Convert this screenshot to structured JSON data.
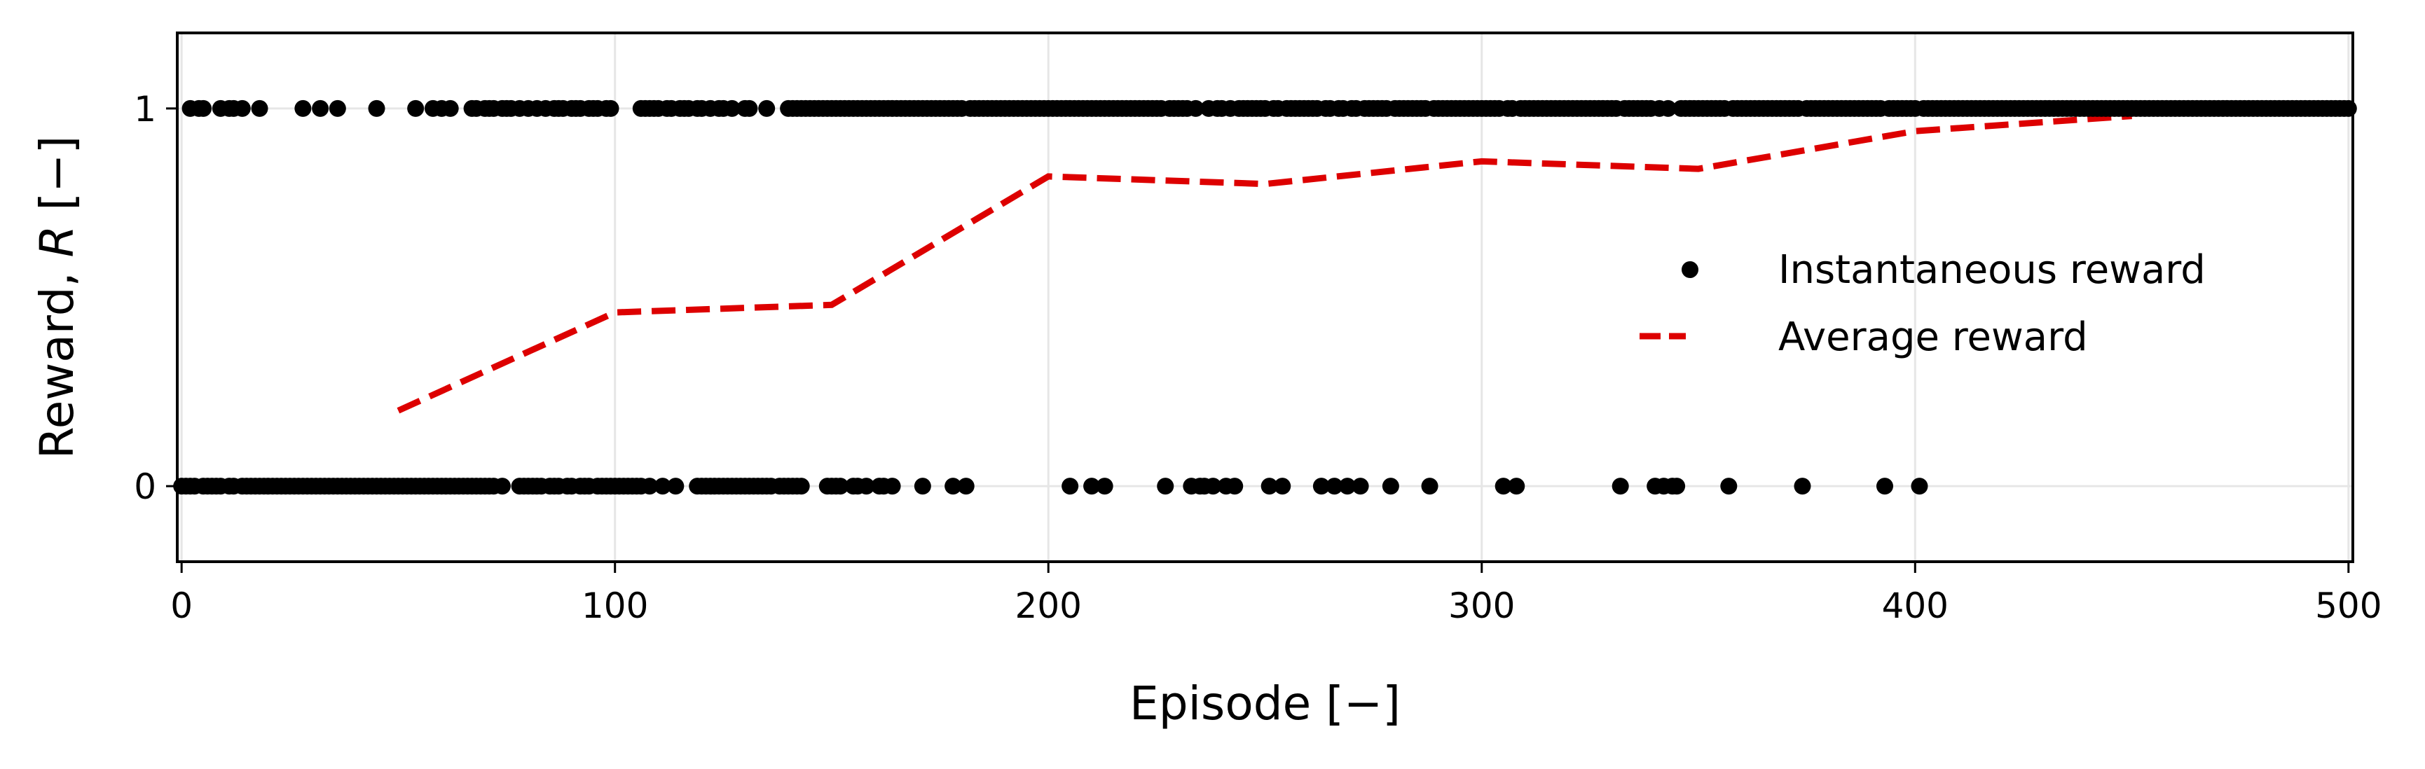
{
  "chart_data": {
    "type": "scatter",
    "xlabel": "Episode [−]",
    "ylabel_prefix": "Reward, ",
    "ylabel_var": "R",
    "ylabel_suffix": " [−]",
    "xlim": [
      -1,
      501
    ],
    "ylim": [
      -0.2,
      1.2
    ],
    "xticks": [
      0,
      100,
      200,
      300,
      400,
      500
    ],
    "xtick_labels": [
      "0",
      "100",
      "200",
      "300",
      "400",
      "500"
    ],
    "yticks": [
      0,
      1
    ],
    "ytick_labels": [
      "0",
      "1"
    ],
    "grid": true,
    "legend_position": "center-right",
    "colors": {
      "instantaneous": "#000000",
      "average": "#dd0000",
      "grid": "#e6e6e6"
    },
    "series": [
      {
        "name": "Instantaneous reward",
        "kind": "scatter",
        "zeros": [
          0,
          1,
          2,
          3,
          5,
          6,
          7,
          8,
          9,
          11,
          12,
          14,
          15,
          16,
          17,
          18,
          19,
          20,
          21,
          22,
          23,
          24,
          25,
          26,
          27,
          28,
          29,
          30,
          31,
          32,
          33,
          34,
          35,
          36,
          37,
          38,
          39,
          40,
          41,
          42,
          43,
          44,
          45,
          46,
          47,
          48,
          49,
          50,
          51,
          52,
          53,
          54,
          55,
          56,
          57,
          58,
          59,
          60,
          61,
          62,
          63,
          64,
          65,
          66,
          67,
          68,
          69,
          70,
          71,
          72,
          74,
          78,
          79,
          80,
          81,
          82,
          83,
          85,
          86,
          87,
          89,
          90,
          92,
          93,
          94,
          96,
          97,
          98,
          99,
          100,
          101,
          102,
          103,
          104,
          105,
          106,
          108,
          111,
          114,
          119,
          120,
          121,
          122,
          123,
          124,
          125,
          126,
          127,
          128,
          129,
          130,
          131,
          132,
          133,
          134,
          135,
          136,
          138,
          139,
          140,
          141,
          142,
          143,
          149,
          150,
          151,
          152,
          155,
          156,
          158,
          161,
          162,
          164,
          171,
          178,
          181,
          205,
          210,
          213,
          227,
          233,
          235,
          236,
          238,
          241,
          243,
          251,
          254,
          263,
          266,
          269,
          272,
          279,
          288,
          305,
          308,
          332,
          340,
          342,
          344,
          345,
          357,
          374,
          393,
          401
        ],
        "ones_sparse": [
          2,
          4,
          5,
          9,
          11,
          12,
          14,
          18,
          28,
          32,
          36,
          45,
          54,
          58,
          60,
          62,
          67,
          68,
          70,
          71,
          72,
          74,
          75,
          76,
          78,
          80,
          82,
          84,
          86,
          87,
          88,
          90,
          91,
          92,
          94,
          95,
          96,
          98,
          99,
          106,
          107,
          108,
          109,
          110,
          112,
          113,
          115,
          116,
          117,
          119,
          120,
          122,
          124,
          125,
          127,
          130,
          131,
          135,
          140,
          141,
          142,
          143,
          144,
          145,
          146,
          147,
          148,
          149,
          150,
          151,
          152,
          153,
          154,
          155,
          156,
          157,
          158,
          159,
          160,
          161,
          162,
          163,
          164,
          165,
          166,
          167,
          168,
          169,
          170,
          171,
          172,
          173,
          174,
          175,
          176,
          177,
          178,
          179,
          180,
          182,
          183,
          184,
          185,
          186,
          187,
          188,
          189,
          190,
          191,
          192,
          193,
          194,
          195,
          196,
          197,
          198,
          199,
          200,
          201,
          202,
          203,
          204,
          205,
          206,
          207,
          208,
          209,
          210,
          211,
          212,
          213,
          214,
          215,
          216,
          217,
          218,
          219,
          220,
          221,
          222,
          223,
          224,
          225,
          226,
          228,
          229,
          230,
          231,
          232,
          234,
          237,
          239,
          240,
          242,
          244,
          245,
          246,
          247,
          248,
          249,
          250,
          252,
          253,
          255,
          256,
          257,
          258,
          259,
          260,
          261,
          262,
          264,
          265,
          267,
          268,
          270,
          271,
          273,
          274,
          275,
          276,
          277,
          278,
          280,
          281,
          282,
          283,
          284,
          285,
          286,
          287,
          289,
          290,
          291,
          292,
          293,
          294,
          295,
          296,
          297,
          298,
          299,
          300,
          301,
          302,
          303,
          304,
          306,
          307,
          309,
          310,
          311,
          312,
          313,
          314,
          315,
          316,
          317,
          318,
          319,
          320,
          321,
          322,
          323,
          324,
          325,
          326,
          327,
          328,
          329,
          330,
          331,
          333,
          334,
          335,
          336,
          337,
          338,
          339,
          341,
          343,
          346,
          347,
          348,
          349,
          350,
          351,
          352,
          353,
          354,
          355,
          356,
          358,
          359,
          360,
          361,
          362,
          363,
          364,
          365,
          366,
          367,
          368,
          369,
          370,
          371,
          372,
          373,
          375,
          376,
          377,
          378,
          379,
          380,
          381,
          382,
          383,
          384,
          385,
          386,
          387,
          388,
          389,
          390,
          391,
          392,
          394,
          395,
          396,
          397,
          398,
          399,
          400
        ],
        "ones_dense_from": 402,
        "ones_dense_to": 500
      },
      {
        "name": "Average reward",
        "kind": "line",
        "x": [
          50,
          100,
          150,
          200,
          250,
          300,
          350,
          400,
          450
        ],
        "y": [
          0.2,
          0.46,
          0.48,
          0.82,
          0.8,
          0.86,
          0.84,
          0.94,
          0.98
        ]
      }
    ]
  }
}
